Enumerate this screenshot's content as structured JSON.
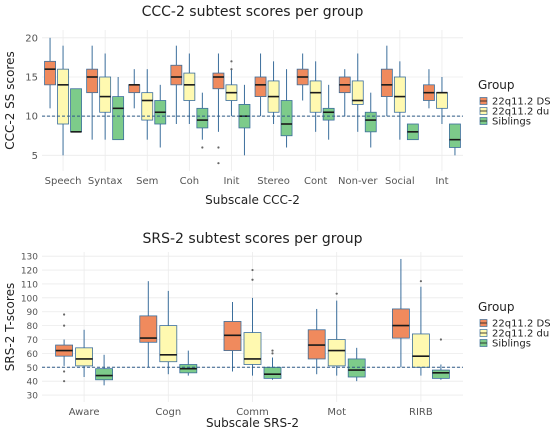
{
  "colors": {
    "group1": "#F08A5D",
    "group2": "#FFF9B0",
    "group3": "#7DCB8A",
    "outline": "#3B6E9C",
    "grid": "#EBEBEB",
    "refline": "#2E5A88"
  },
  "chart_data": [
    {
      "type": "boxplot",
      "title": "CCC-2 subtest scores per group",
      "xlabel": "Subscale CCC-2",
      "ylabel": "CCC-2 SS scores",
      "ylim": [
        3,
        21
      ],
      "yticks": [
        5,
        10,
        15,
        20
      ],
      "reference_line": 10,
      "legend_title": "Group",
      "legend_placement": "right",
      "categories": [
        "Speech",
        "Syntax",
        "Sem",
        "Coh",
        "Init",
        "Stereo",
        "Cont",
        "Non-ver",
        "Social",
        "Int"
      ],
      "series": [
        {
          "name": "22q11.2 DS",
          "boxes": [
            {
              "min": 11,
              "q1": 14,
              "median": 16,
              "q3": 17,
              "max": 20
            },
            {
              "min": 7,
              "q1": 13,
              "median": 15,
              "q3": 16,
              "max": 19
            },
            {
              "min": 11,
              "q1": 13,
              "median": 14,
              "q3": 14,
              "max": 16
            },
            {
              "min": 9,
              "q1": 14,
              "median": 15,
              "q3": 16.5,
              "max": 19
            },
            {
              "min": 8,
              "q1": 13.5,
              "median": 15,
              "q3": 15.5,
              "max": 18
            },
            {
              "min": 10,
              "q1": 12.5,
              "median": 14,
              "q3": 15,
              "max": 18
            },
            {
              "min": 12,
              "q1": 14,
              "median": 15,
              "q3": 16,
              "max": 18
            },
            {
              "min": 10,
              "q1": 13,
              "median": 14,
              "q3": 15,
              "max": 16
            },
            {
              "min": 10,
              "q1": 12.5,
              "median": 14,
              "q3": 16,
              "max": 19
            },
            {
              "min": 11,
              "q1": 12,
              "median": 13,
              "q3": 14,
              "max": 16
            }
          ],
          "outliers": [
            [],
            [],
            [],
            [],
            [
              6,
              4
            ],
            [],
            [],
            [],
            [],
            []
          ]
        },
        {
          "name": "22q11.2 dup",
          "boxes": [
            {
              "min": 5,
              "q1": 9,
              "median": 14,
              "q3": 16,
              "max": 19
            },
            {
              "min": 7,
              "q1": 10.5,
              "median": 12.5,
              "q3": 15,
              "max": 18
            },
            {
              "min": 7,
              "q1": 9.5,
              "median": 12,
              "q3": 13,
              "max": 16
            },
            {
              "min": 9,
              "q1": 12,
              "median": 14,
              "q3": 15.5,
              "max": 18
            },
            {
              "min": 10,
              "q1": 12,
              "median": 13,
              "q3": 14,
              "max": 16
            },
            {
              "min": 9,
              "q1": 10.5,
              "median": 12.5,
              "q3": 14.5,
              "max": 17
            },
            {
              "min": 8,
              "q1": 10.5,
              "median": 13,
              "q3": 14.5,
              "max": 17
            },
            {
              "min": 8,
              "q1": 11.5,
              "median": 12,
              "q3": 14.5,
              "max": 18
            },
            {
              "min": 7,
              "q1": 10.5,
              "median": 12.5,
              "q3": 15,
              "max": 17
            },
            {
              "min": 9,
              "q1": 11,
              "median": 13,
              "q3": 13,
              "max": 15
            }
          ],
          "outliers": [
            [],
            [],
            [],
            [],
            [
              17,
              16
            ],
            [],
            [],
            [],
            [],
            []
          ]
        },
        {
          "name": "Siblings",
          "boxes": [
            {
              "min": 8,
              "q1": 8,
              "median": 8,
              "q3": 13.5,
              "max": 13.5
            },
            {
              "min": 7,
              "q1": 7,
              "median": 11,
              "q3": 12.5,
              "max": 15
            },
            {
              "min": 6,
              "q1": 9,
              "median": 10.5,
              "q3": 12,
              "max": 14
            },
            {
              "min": 7,
              "q1": 8.5,
              "median": 9.5,
              "q3": 11,
              "max": 13
            },
            {
              "min": 5,
              "q1": 8.5,
              "median": 10,
              "q3": 11.5,
              "max": 14
            },
            {
              "min": 6,
              "q1": 7.5,
              "median": 9,
              "q3": 12,
              "max": 16
            },
            {
              "min": 7,
              "q1": 9.5,
              "median": 10.5,
              "q3": 11,
              "max": 14
            },
            {
              "min": 6,
              "q1": 8,
              "median": 9.5,
              "q3": 10.5,
              "max": 13
            },
            {
              "min": 7,
              "q1": 7,
              "median": 8,
              "q3": 9,
              "max": 9
            },
            {
              "min": 5,
              "q1": 6,
              "median": 7,
              "q3": 9,
              "max": 9
            }
          ],
          "outliers": [
            [],
            [],
            [],
            [
              6
            ],
            [],
            [],
            [],
            [],
            [],
            []
          ]
        }
      ]
    },
    {
      "type": "boxplot",
      "title": "SRS-2 subtest scores per group",
      "xlabel": "Subscale SRS-2",
      "ylabel": "SRS-2 T-scores",
      "ylim": [
        25,
        133
      ],
      "yticks": [
        30,
        40,
        50,
        60,
        70,
        80,
        90,
        100,
        110,
        120,
        130
      ],
      "reference_line": 50,
      "legend_title": "Group",
      "legend_placement": "right",
      "categories": [
        "Aware",
        "Cogn",
        "Comm",
        "Mot",
        "RIRB"
      ],
      "series": [
        {
          "name": "22q11.2 DS",
          "boxes": [
            {
              "min": 51,
              "q1": 58,
              "median": 62,
              "q3": 66,
              "max": 70
            },
            {
              "min": 50,
              "q1": 68,
              "median": 71,
              "q3": 87,
              "max": 112
            },
            {
              "min": 47,
              "q1": 62,
              "median": 73,
              "q3": 83,
              "max": 97
            },
            {
              "min": 45,
              "q1": 56,
              "median": 66,
              "q3": 77,
              "max": 92
            },
            {
              "min": 50,
              "q1": 71,
              "median": 80,
              "q3": 92,
              "max": 128
            }
          ],
          "outliers": [
            [
              88,
              80,
              47,
              40
            ],
            [],
            [],
            [],
            []
          ]
        },
        {
          "name": "22q11.2 dup",
          "boxes": [
            {
              "min": 43,
              "q1": 51,
              "median": 56,
              "q3": 64,
              "max": 77
            },
            {
              "min": 45,
              "q1": 54,
              "median": 59,
              "q3": 80,
              "max": 105
            },
            {
              "min": 44,
              "q1": 52,
              "median": 56,
              "q3": 75,
              "max": 100
            },
            {
              "min": 44,
              "q1": 51,
              "median": 62,
              "q3": 70,
              "max": 98
            },
            {
              "min": 44,
              "q1": 50,
              "median": 58,
              "q3": 74,
              "max": 108
            }
          ],
          "outliers": [
            [],
            [],
            [
              120,
              113
            ],
            [
              103
            ],
            [
              112
            ]
          ]
        },
        {
          "name": "Siblings",
          "boxes": [
            {
              "min": 37,
              "q1": 41,
              "median": 44,
              "q3": 49,
              "max": 59
            },
            {
              "min": 44,
              "q1": 46,
              "median": 49,
              "q3": 52,
              "max": 62
            },
            {
              "min": 41,
              "q1": 42,
              "median": 45,
              "q3": 50,
              "max": 57
            },
            {
              "min": 40,
              "q1": 43,
              "median": 48,
              "q3": 56,
              "max": 64
            },
            {
              "min": 41,
              "q1": 42,
              "median": 46,
              "q3": 48,
              "max": 52
            }
          ],
          "outliers": [
            [],
            [],
            [
              62,
              60
            ],
            [],
            [
              70
            ]
          ]
        }
      ]
    }
  ]
}
